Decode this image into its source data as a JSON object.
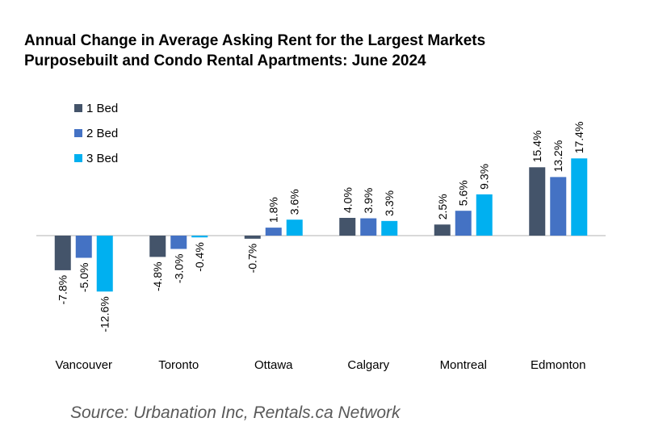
{
  "chart_data": {
    "type": "bar",
    "title_lines": [
      "Annual Change in Average Asking Rent for the Largest Markets",
      "Purposebuilt and Condo Rental Apartments: June 2024"
    ],
    "categories": [
      "Vancouver",
      "Toronto",
      "Ottawa",
      "Calgary",
      "Montreal",
      "Edmonton"
    ],
    "series": [
      {
        "name": "1 Bed",
        "color": "#44546a",
        "values": [
          -7.8,
          -4.8,
          -0.7,
          4.0,
          2.5,
          15.4
        ]
      },
      {
        "name": "2 Bed",
        "color": "#4472c4",
        "values": [
          -5.0,
          -3.0,
          1.8,
          3.9,
          5.6,
          13.2
        ]
      },
      {
        "name": "3 Bed",
        "color": "#00b0f0",
        "values": [
          -12.6,
          -0.4,
          3.6,
          3.3,
          9.3,
          17.4
        ]
      }
    ],
    "value_suffix": "%",
    "legend_position": "top-left",
    "xlabel": "",
    "ylabel": "",
    "ylim": [
      -14,
      20
    ],
    "grid": false
  },
  "source": "Source: Urbanation Inc, Rentals.ca Network"
}
